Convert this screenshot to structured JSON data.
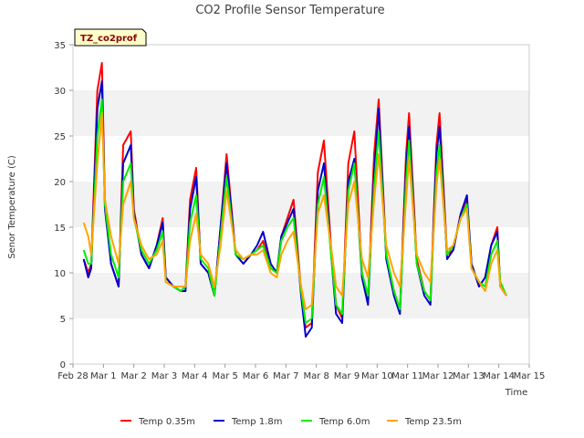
{
  "chart_data": {
    "type": "line",
    "title": "CO2 Profile Sensor Temperature",
    "xlabel": "Time",
    "ylabel": "Senor Temperature (C)",
    "site_label": "TZ_co2prof",
    "ylim": [
      0,
      35
    ],
    "yticks": [
      0,
      5,
      10,
      15,
      20,
      25,
      30,
      35
    ],
    "xlim": [
      0,
      15
    ],
    "xtick_values": [
      0,
      1,
      2,
      3,
      4,
      5,
      6,
      7,
      8,
      9,
      10,
      11,
      12,
      13,
      14,
      15
    ],
    "xtick_labels": [
      "Feb 28",
      "Mar 1",
      "Mar 2",
      "Mar 3",
      "Mar 4",
      "Mar 5",
      "Mar 6",
      "Mar 7",
      "Mar 8",
      "Mar 9",
      "Mar 10",
      "Mar 11",
      "Mar 12",
      "Mar 13",
      "Mar 14",
      "Mar 15"
    ],
    "x_units": "days since Feb 28",
    "grid": "horizontal bands",
    "legend_position": "bottom",
    "series": [
      {
        "name": "Temp 0.35m",
        "color": "#ff0000",
        "x": [
          0.35,
          0.5,
          0.6,
          0.8,
          0.95,
          1.05,
          1.25,
          1.5,
          1.65,
          1.9,
          2.0,
          2.25,
          2.5,
          2.75,
          2.95,
          3.05,
          3.3,
          3.55,
          3.7,
          3.85,
          4.05,
          4.2,
          4.45,
          4.65,
          4.85,
          5.05,
          5.35,
          5.6,
          5.85,
          6.05,
          6.25,
          6.5,
          6.7,
          6.85,
          7.05,
          7.25,
          7.5,
          7.65,
          7.85,
          8.05,
          8.25,
          8.5,
          8.65,
          8.85,
          9.05,
          9.25,
          9.5,
          9.7,
          9.9,
          10.05,
          10.3,
          10.55,
          10.75,
          10.95,
          11.05,
          11.3,
          11.55,
          11.75,
          11.95,
          12.05,
          12.3,
          12.5,
          12.75,
          12.95,
          13.1,
          13.35,
          13.55,
          13.75,
          13.95,
          14.05,
          14.25
        ],
        "values": [
          11.5,
          10,
          11,
          30,
          33,
          18,
          11,
          8.5,
          24,
          25.5,
          17,
          12,
          10.5,
          13,
          16,
          9.5,
          8.5,
          8,
          8.5,
          18,
          21.5,
          11,
          10,
          7.5,
          15,
          23,
          12,
          11,
          12,
          12.5,
          13.5,
          10.5,
          10,
          14,
          16,
          18,
          8,
          4,
          4.5,
          21,
          24.5,
          12,
          6.5,
          5,
          22,
          25.5,
          10,
          7,
          23,
          29,
          12,
          8,
          6,
          23,
          27.5,
          11.5,
          8,
          7,
          24,
          27.5,
          12,
          12.5,
          16.5,
          18,
          11,
          8.5,
          9.5,
          13,
          15,
          8.5,
          7.5
        ]
      },
      {
        "name": "Temp 1.8m",
        "color": "#0000cc",
        "x": [
          0.35,
          0.5,
          0.6,
          0.8,
          0.95,
          1.05,
          1.25,
          1.5,
          1.65,
          1.9,
          2.0,
          2.25,
          2.5,
          2.75,
          2.95,
          3.05,
          3.3,
          3.55,
          3.7,
          3.85,
          4.05,
          4.2,
          4.45,
          4.65,
          4.85,
          5.05,
          5.35,
          5.6,
          5.85,
          6.05,
          6.25,
          6.5,
          6.7,
          6.85,
          7.05,
          7.25,
          7.5,
          7.65,
          7.85,
          8.05,
          8.25,
          8.5,
          8.65,
          8.85,
          9.05,
          9.25,
          9.5,
          9.7,
          9.9,
          10.05,
          10.3,
          10.55,
          10.75,
          10.95,
          11.05,
          11.3,
          11.55,
          11.75,
          11.95,
          12.05,
          12.3,
          12.5,
          12.75,
          12.95,
          13.1,
          13.35,
          13.55,
          13.75,
          13.95,
          14.05,
          14.25
        ],
        "values": [
          11.5,
          9.5,
          10.5,
          28,
          31,
          17,
          11,
          8.5,
          22,
          24,
          16.5,
          12,
          10.5,
          13,
          15.5,
          9.5,
          8.5,
          8,
          8,
          17,
          20.5,
          11,
          10,
          7.5,
          15,
          22,
          12,
          11,
          12,
          13,
          14.5,
          11,
          10,
          14,
          15.5,
          17,
          7.5,
          3,
          4,
          19,
          22,
          11.5,
          5.5,
          4.5,
          20,
          22.5,
          9.5,
          6.5,
          21,
          28,
          11.5,
          7.5,
          5.5,
          21.5,
          26,
          11,
          7.5,
          6.5,
          23,
          26,
          11.5,
          12.5,
          16.5,
          18.5,
          11,
          8.5,
          9.5,
          13,
          14.5,
          8.5,
          7.5
        ]
      },
      {
        "name": "Temp 6.0m",
        "color": "#00ee00",
        "x": [
          0.35,
          0.5,
          0.6,
          0.8,
          0.95,
          1.05,
          1.25,
          1.5,
          1.65,
          1.9,
          2.0,
          2.25,
          2.5,
          2.75,
          2.95,
          3.05,
          3.3,
          3.55,
          3.7,
          3.85,
          4.05,
          4.2,
          4.45,
          4.65,
          4.85,
          5.05,
          5.35,
          5.6,
          5.85,
          6.05,
          6.25,
          6.5,
          6.7,
          6.85,
          7.05,
          7.25,
          7.5,
          7.65,
          7.85,
          8.05,
          8.25,
          8.5,
          8.65,
          8.85,
          9.05,
          9.25,
          9.5,
          9.7,
          9.9,
          10.05,
          10.3,
          10.55,
          10.75,
          10.95,
          11.05,
          11.3,
          11.55,
          11.75,
          11.95,
          12.05,
          12.3,
          12.5,
          12.75,
          12.95,
          13.1,
          13.35,
          13.55,
          13.75,
          13.95,
          14.05,
          14.25
        ],
        "values": [
          12.5,
          11,
          11,
          25,
          29,
          17.5,
          12,
          9.5,
          20,
          22,
          16,
          12.5,
          11,
          12.5,
          14.5,
          9,
          8.5,
          8,
          8.5,
          15.5,
          18.5,
          11.5,
          10.5,
          7.5,
          14,
          20.5,
          12,
          11.5,
          12,
          12.5,
          13,
          10.5,
          10,
          13.5,
          15,
          16,
          8,
          4.5,
          5,
          17.5,
          20.5,
          11.5,
          6.5,
          5.5,
          19,
          22,
          10,
          7.5,
          19.5,
          25.5,
          12,
          8,
          6,
          20,
          24.5,
          11,
          8,
          7,
          21,
          24,
          12,
          13,
          16,
          17.5,
          10.5,
          9,
          8.5,
          12,
          13.5,
          9,
          7.5
        ]
      },
      {
        "name": "Temp 23.5m",
        "color": "#ffa500",
        "x": [
          0.35,
          0.5,
          0.6,
          0.8,
          0.95,
          1.05,
          1.25,
          1.5,
          1.65,
          1.9,
          2.0,
          2.25,
          2.5,
          2.75,
          2.95,
          3.05,
          3.3,
          3.55,
          3.7,
          3.85,
          4.05,
          4.2,
          4.45,
          4.65,
          4.85,
          5.05,
          5.35,
          5.6,
          5.85,
          6.05,
          6.25,
          6.5,
          6.7,
          6.85,
          7.05,
          7.25,
          7.5,
          7.65,
          7.85,
          8.05,
          8.25,
          8.5,
          8.65,
          8.85,
          9.05,
          9.25,
          9.5,
          9.7,
          9.9,
          10.05,
          10.3,
          10.55,
          10.75,
          10.95,
          11.05,
          11.3,
          11.55,
          11.75,
          11.95,
          12.05,
          12.3,
          12.5,
          12.75,
          12.95,
          13.1,
          13.35,
          13.55,
          13.75,
          13.95,
          14.05,
          14.25
        ],
        "values": [
          15.5,
          14,
          12,
          22,
          27.5,
          18,
          14,
          11,
          17.5,
          20,
          16,
          13,
          11.5,
          12,
          13.5,
          9,
          8.5,
          8.5,
          8.5,
          13.5,
          16.5,
          12,
          11,
          8.5,
          13,
          19,
          12.5,
          11.5,
          12,
          12,
          12.5,
          10,
          9.5,
          12,
          13.5,
          14.5,
          8.5,
          6,
          6.5,
          16.5,
          18.5,
          12.5,
          8.5,
          7.5,
          17.5,
          20,
          11.5,
          9.5,
          18,
          23,
          13,
          10,
          8.5,
          18,
          22.5,
          12,
          10,
          9,
          19.5,
          22.5,
          12.5,
          13,
          16,
          17,
          10.5,
          9,
          8,
          11,
          12.5,
          8.5,
          7.5
        ]
      }
    ]
  }
}
